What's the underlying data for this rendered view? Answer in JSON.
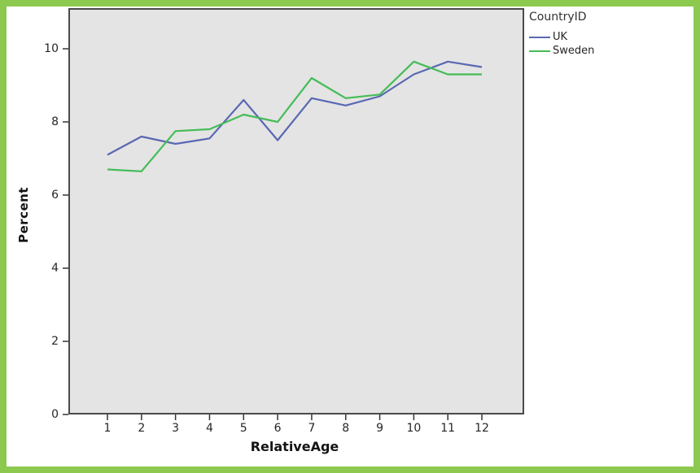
{
  "window": {
    "background_color": "#ffffff",
    "outer_border_color": "#8dc94f"
  },
  "chart_data": {
    "type": "line",
    "title": "",
    "xlabel": "RelativeAge",
    "ylabel": "Percent",
    "categories": [
      "1",
      "2",
      "3",
      "4",
      "5",
      "6",
      "7",
      "8",
      "9",
      "10",
      "11",
      "12"
    ],
    "series": [
      {
        "name": "UK",
        "color": "#5a68b2",
        "values": [
          7.1,
          7.6,
          7.4,
          7.55,
          8.6,
          7.5,
          8.65,
          8.45,
          8.7,
          9.3,
          9.65,
          9.5
        ]
      },
      {
        "name": "Sweden",
        "color": "#44bc57",
        "values": [
          6.7,
          6.65,
          7.75,
          7.8,
          8.2,
          8.0,
          9.2,
          8.65,
          8.75,
          9.65,
          9.3,
          9.3
        ]
      }
    ],
    "y_ticks": [
      0,
      2,
      4,
      6,
      8,
      10
    ],
    "ylim": [
      0,
      11.1
    ],
    "xlim_categories": [
      1,
      12
    ],
    "grid": false,
    "plot_bg": "#e4e4e4",
    "plot_border_color": "#4a4a4a",
    "tick_color": "#333333",
    "legend": {
      "title": "CountryID",
      "position": "top-right-outside"
    }
  }
}
